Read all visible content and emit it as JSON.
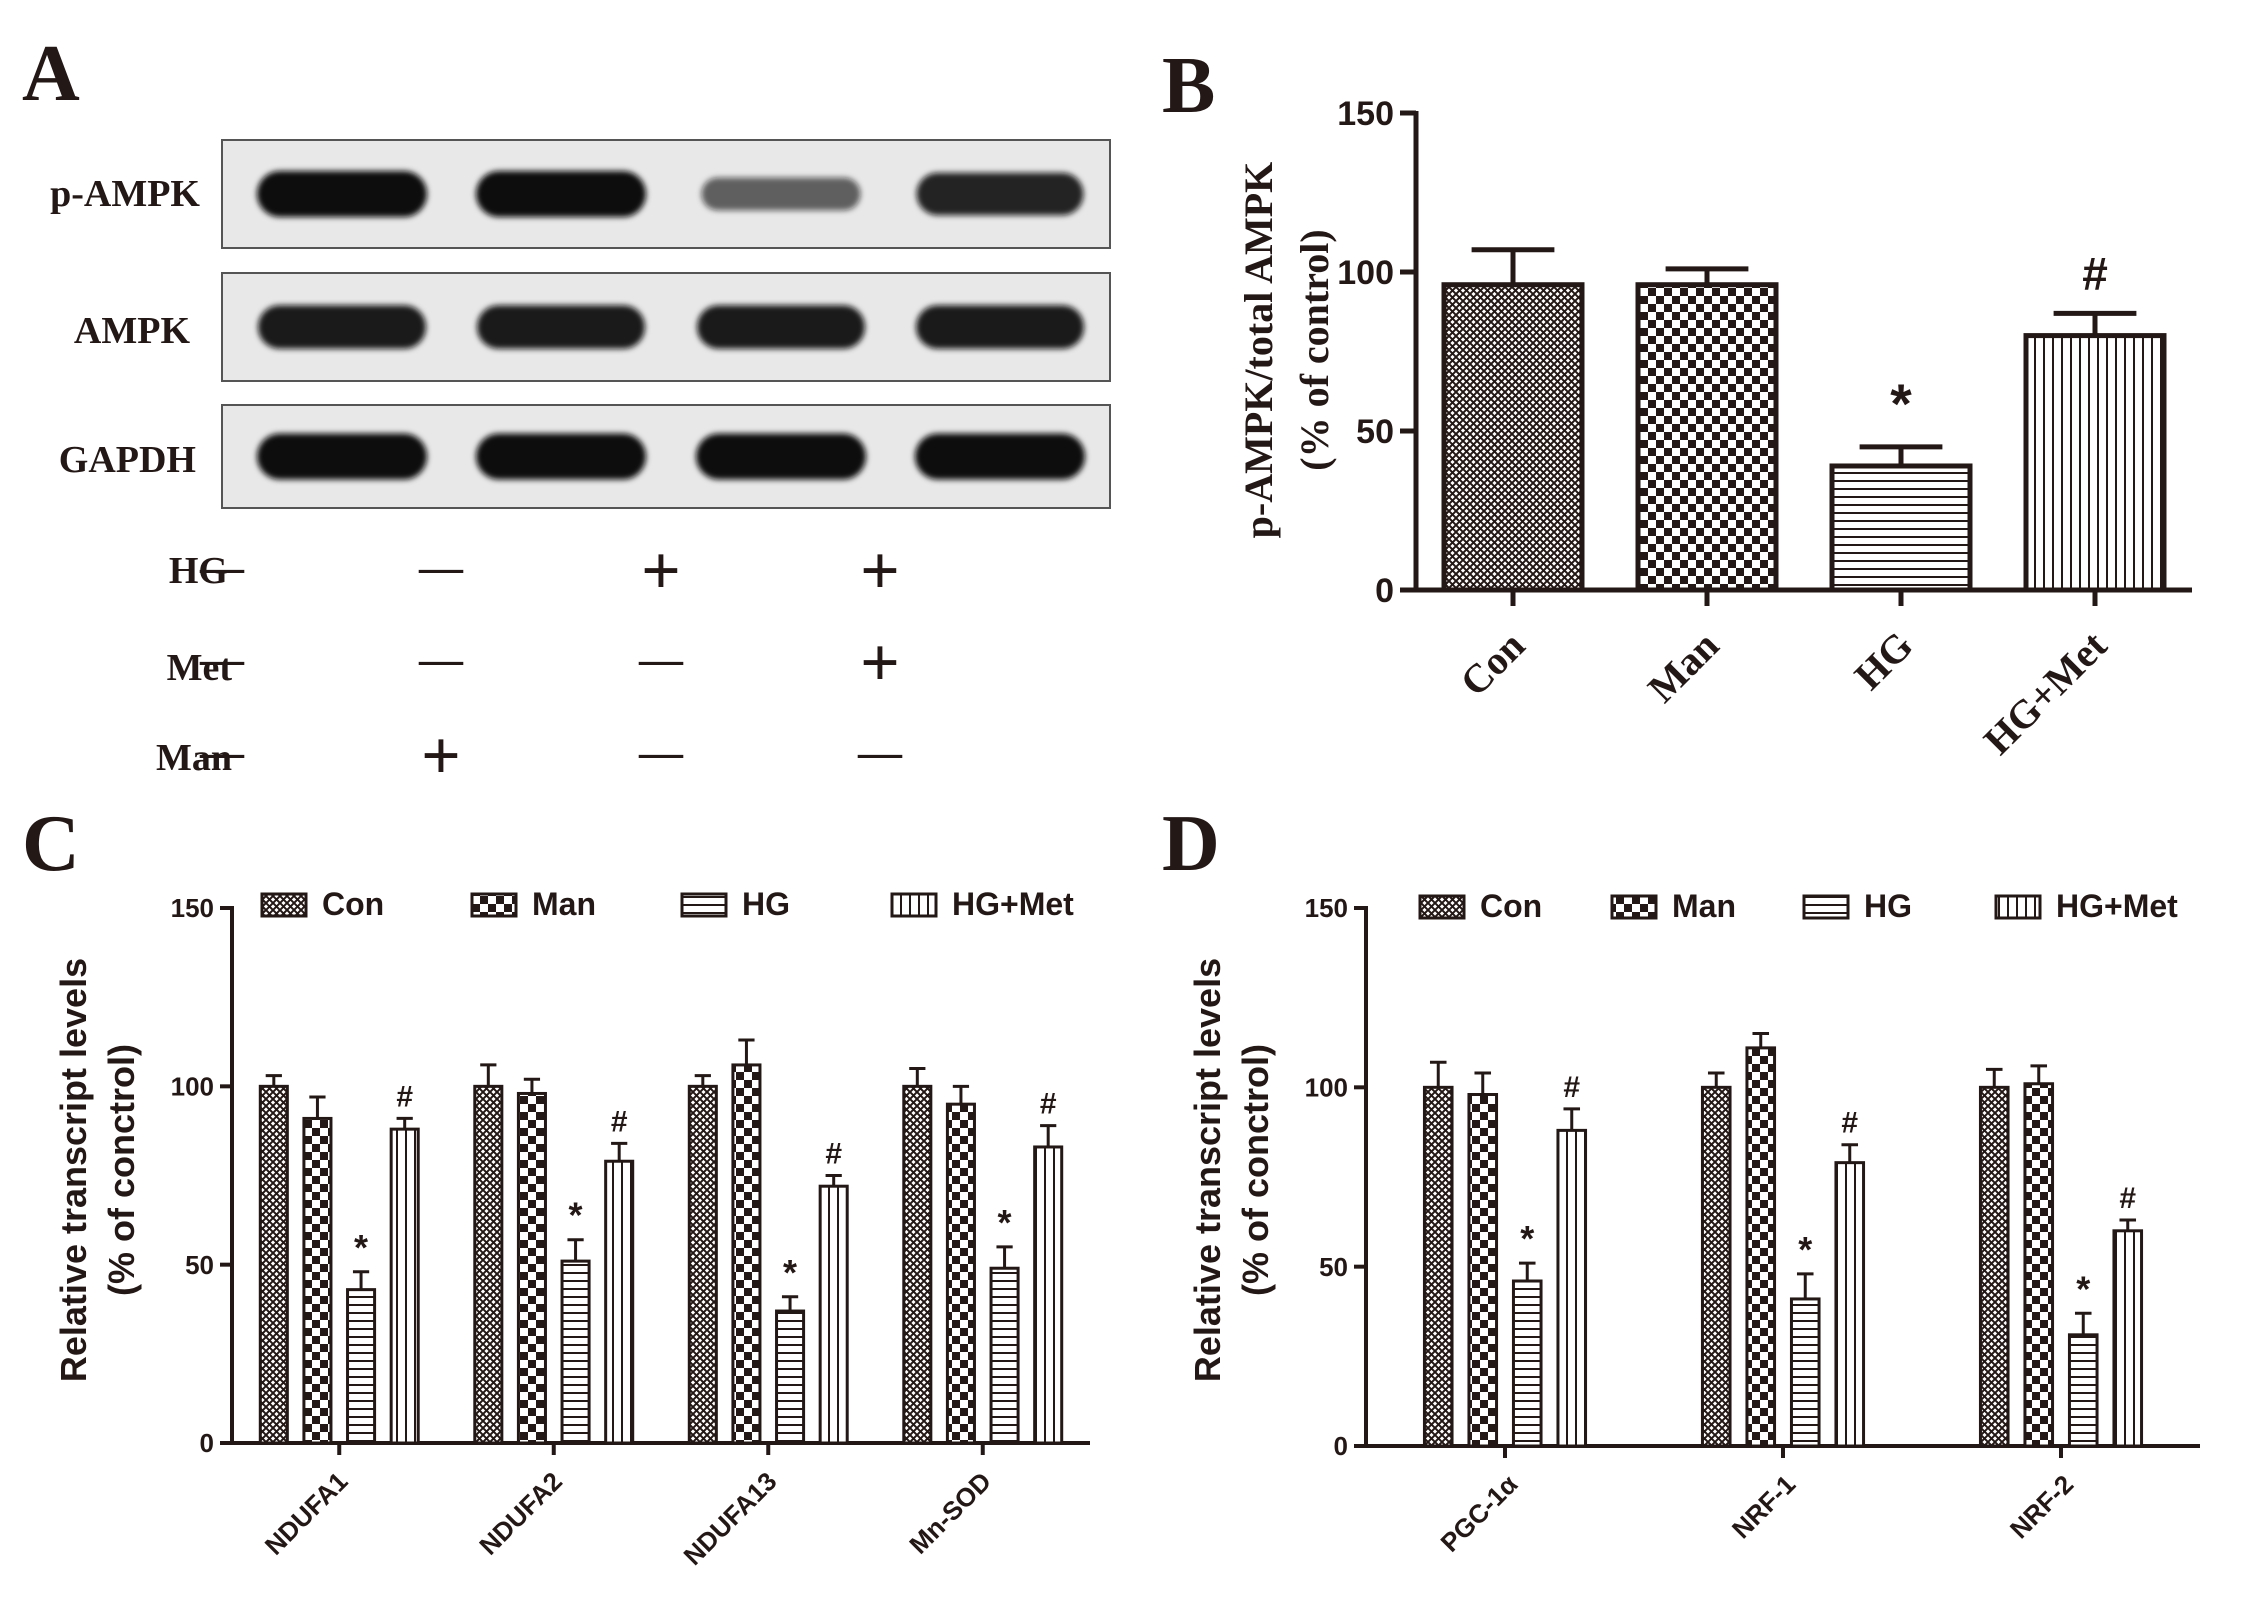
{
  "panels": {
    "A": {
      "letter": "A",
      "bands": [
        "p-AMPK",
        "AMPK",
        "GAPDH"
      ],
      "band_intensity": [
        [
          1.0,
          1.0,
          0.45,
          0.85
        ],
        [
          0.9,
          0.9,
          0.9,
          0.9
        ],
        [
          1.0,
          1.0,
          1.0,
          1.0
        ]
      ],
      "treatments": [
        {
          "label": "HG",
          "marks": [
            "—",
            "—",
            "+",
            "+"
          ]
        },
        {
          "label": "Met",
          "marks": [
            "—",
            "—",
            "—",
            "+"
          ]
        },
        {
          "label": "Man",
          "marks": [
            "—",
            "+",
            "—",
            "—"
          ]
        }
      ]
    },
    "B": {
      "letter": "B"
    },
    "C": {
      "letter": "C"
    },
    "D": {
      "letter": "D"
    }
  },
  "colors": {
    "ink": "#231815",
    "bg": "#ffffff",
    "blot_bg": "#e8e8e8",
    "band": "#111111"
  },
  "chart_data": [
    {
      "panel": "B",
      "type": "bar",
      "categories": [
        "Con",
        "Man",
        "HG",
        "HG+Met"
      ],
      "values": [
        96,
        96,
        39,
        80
      ],
      "errors": [
        11,
        5,
        6,
        7
      ],
      "annotations": [
        "",
        "",
        "*",
        "#"
      ],
      "patterns": [
        "crosshatch",
        "checker",
        "hlines",
        "vlines"
      ],
      "ylabel": [
        "p-AMPK/total AMPK",
        "(% of control)"
      ],
      "ylim": [
        0,
        150
      ],
      "yticks": [
        0,
        50,
        100,
        150
      ]
    },
    {
      "panel": "C",
      "type": "bar",
      "categories": [
        "NDUFA1",
        "NDUFA2",
        "NDUFA13",
        "Mn-SOD"
      ],
      "series": [
        {
          "name": "Con",
          "pattern": "crosshatch",
          "values": [
            100,
            100,
            100,
            100
          ],
          "errors": [
            3,
            6,
            3,
            5
          ],
          "annotations": [
            "",
            "",
            "",
            ""
          ]
        },
        {
          "name": "Man",
          "pattern": "checker",
          "values": [
            91,
            98,
            106,
            95
          ],
          "errors": [
            6,
            4,
            7,
            5
          ],
          "annotations": [
            "",
            "",
            "",
            ""
          ]
        },
        {
          "name": "HG",
          "pattern": "hlines",
          "values": [
            43,
            51,
            37,
            49
          ],
          "errors": [
            5,
            6,
            4,
            6
          ],
          "annotations": [
            "*",
            "*",
            "*",
            "*"
          ]
        },
        {
          "name": "HG+Met",
          "pattern": "vlines",
          "values": [
            88,
            79,
            72,
            83
          ],
          "errors": [
            3,
            5,
            3,
            6
          ],
          "annotations": [
            "#",
            "#",
            "#",
            "#"
          ]
        }
      ],
      "ylabel": [
        "Relative transcript levels",
        "(% of conctrol)"
      ],
      "ylim": [
        0,
        150
      ],
      "yticks": [
        0,
        50,
        100,
        150
      ],
      "legend": "top"
    },
    {
      "panel": "D",
      "type": "bar",
      "categories": [
        "PGC-1α",
        "NRF-1",
        "NRF-2"
      ],
      "series": [
        {
          "name": "Con",
          "pattern": "crosshatch",
          "values": [
            100,
            100,
            100
          ],
          "errors": [
            7,
            4,
            5
          ],
          "annotations": [
            "",
            "",
            ""
          ]
        },
        {
          "name": "Man",
          "pattern": "checker",
          "values": [
            98,
            111,
            101
          ],
          "errors": [
            6,
            4,
            5
          ],
          "annotations": [
            "",
            "",
            ""
          ]
        },
        {
          "name": "HG",
          "pattern": "hlines",
          "values": [
            46,
            41,
            31
          ],
          "errors": [
            5,
            7,
            6
          ],
          "annotations": [
            "*",
            "*",
            "*"
          ]
        },
        {
          "name": "HG+Met",
          "pattern": "vlines",
          "values": [
            88,
            79,
            60
          ],
          "errors": [
            6,
            5,
            3
          ],
          "annotations": [
            "#",
            "#",
            "#"
          ]
        }
      ],
      "ylabel": [
        "Relative transcript levels",
        "(% of conctrol)"
      ],
      "ylim": [
        0,
        150
      ],
      "yticks": [
        0,
        50,
        100,
        150
      ],
      "legend": "top"
    }
  ]
}
